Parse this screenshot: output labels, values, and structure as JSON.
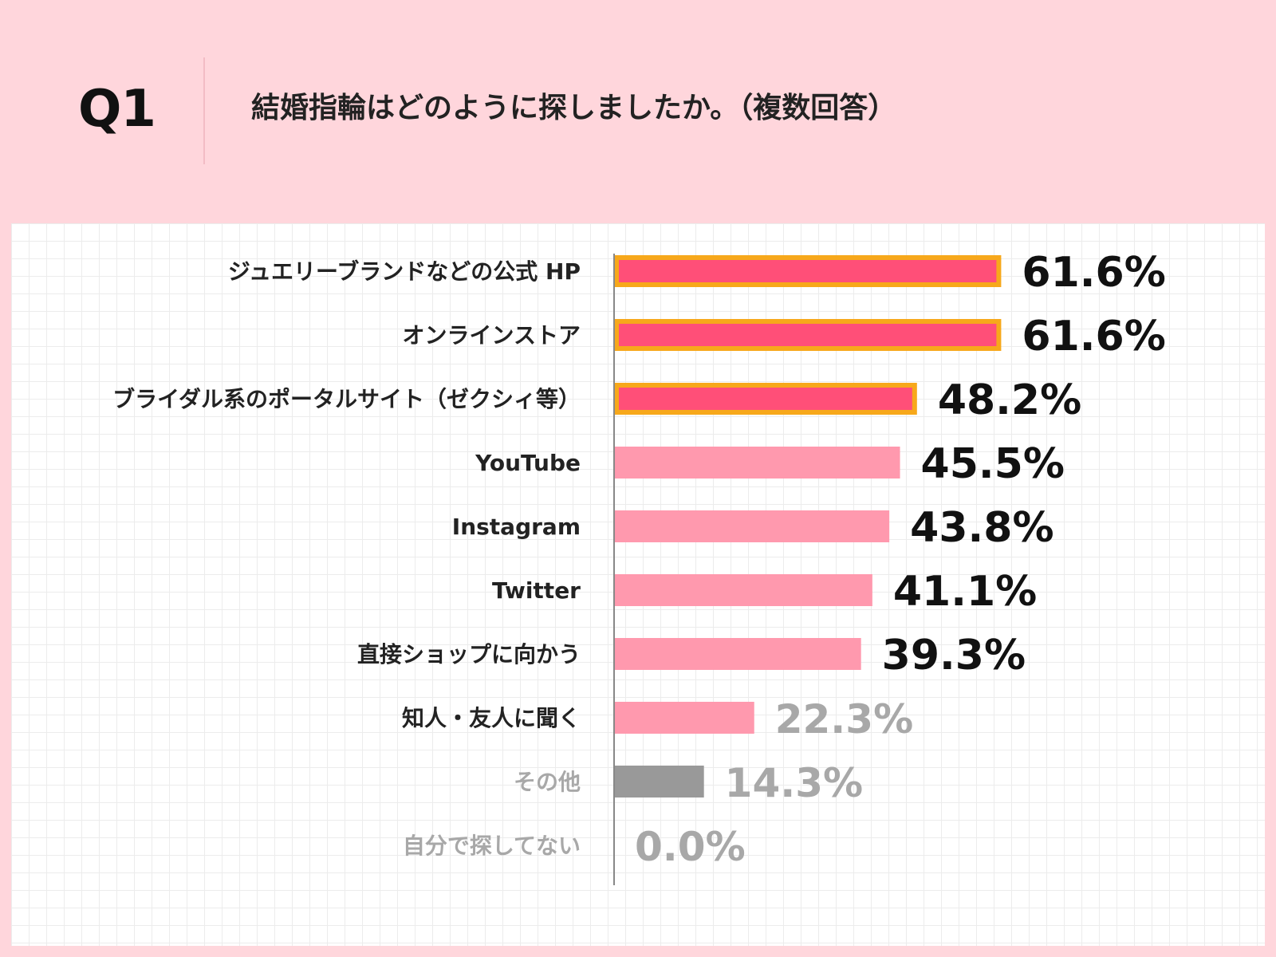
{
  "header": {
    "q_number": "Q1",
    "question": "結婚指輪はどのように探しましたか。（複数回答）"
  },
  "colors": {
    "page_background": "#ffd6dc",
    "highlight_bar": "#ff4f78",
    "highlight_border": "#f7a81b",
    "regular_bar": "#ff99ae",
    "other_bar": "#999999",
    "strong_text": "#111111",
    "muted_text": "#a8a8a8",
    "axis": "#888888"
  },
  "chart_data": {
    "type": "bar",
    "orientation": "horizontal",
    "xlim": [
      0,
      100
    ],
    "value_suffix": "%",
    "categories": [
      "ジュエリーブランドなどの公式 HP",
      "オンラインストア",
      "ブライダル系のポータルサイト（ゼクシィ等）",
      "YouTube",
      "Instagram",
      "Twitter",
      "直接ショップに向かう",
      "知人・友人に聞く",
      "その他",
      "自分で探してない"
    ],
    "values": [
      61.6,
      61.6,
      48.2,
      45.5,
      43.8,
      41.1,
      39.3,
      22.3,
      14.3,
      0.0
    ],
    "value_labels": [
      "61.6%",
      "61.6%",
      "48.2%",
      "45.5%",
      "43.8%",
      "41.1%",
      "39.3%",
      "22.3%",
      "14.3%",
      "0.0%"
    ],
    "styles": [
      "highlight",
      "highlight",
      "highlight",
      "regular",
      "regular",
      "regular",
      "regular",
      "regular",
      "other",
      "none"
    ],
    "label_tones": [
      "strong",
      "strong",
      "strong",
      "strong",
      "strong",
      "strong",
      "strong",
      "strong",
      "muted",
      "muted"
    ],
    "value_tones": [
      "strong",
      "strong",
      "strong",
      "strong",
      "strong",
      "strong",
      "strong",
      "muted",
      "muted",
      "muted"
    ],
    "grid": true,
    "legend": "none"
  }
}
